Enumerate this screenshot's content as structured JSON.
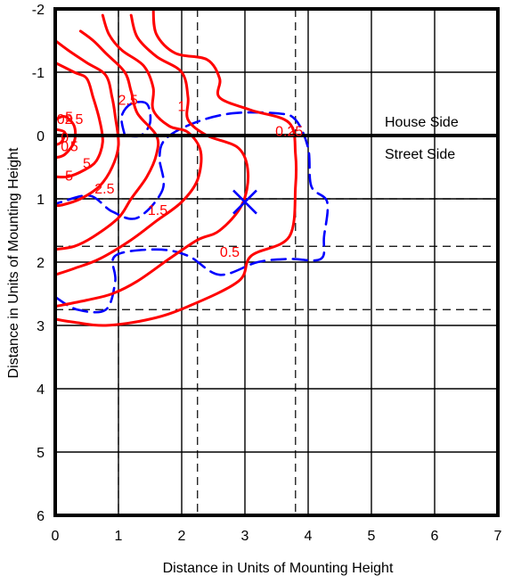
{
  "chart_data": {
    "type": "contour",
    "xlabel": "Distance in Units of Mounting Height",
    "ylabel": "Distance in Units of Mounting Height",
    "xlim": [
      0,
      7
    ],
    "ylim": [
      -2,
      6
    ],
    "y_inverted": true,
    "x_ticks": [
      "0",
      "1",
      "2",
      "3",
      "4",
      "5",
      "6",
      "7"
    ],
    "y_ticks": [
      "-2",
      "-1",
      "0",
      "1",
      "2",
      "3",
      "4",
      "5",
      "6"
    ],
    "y_tick_values": [
      -2,
      -1,
      0,
      1,
      2,
      3,
      4,
      5,
      6
    ],
    "grid": true,
    "zone_labels": {
      "upper": "House Side",
      "lower": "Street Side"
    },
    "colors": {
      "contour": "#ff0000",
      "distribution": "#0000ff",
      "axes": "#000000"
    },
    "dashed_reference_lines": {
      "x": [
        1.0,
        2.25,
        3.8
      ],
      "y": [
        1.0,
        1.75,
        2.75
      ]
    },
    "max_candela_marker": {
      "x": 3.0,
      "y": 1.05
    },
    "contours": [
      {
        "level_label": "0.25",
        "points": [
          [
            1.55,
            -2.0
          ],
          [
            1.6,
            -1.6
          ],
          [
            1.9,
            -1.3
          ],
          [
            2.4,
            -1.2
          ],
          [
            2.6,
            -0.9
          ],
          [
            2.6,
            -0.6
          ],
          [
            3.1,
            -0.4
          ],
          [
            3.7,
            -0.2
          ],
          [
            3.8,
            0.3
          ],
          [
            3.8,
            0.8
          ],
          [
            3.7,
            1.6
          ],
          [
            3.1,
            1.9
          ],
          [
            2.9,
            2.3
          ],
          [
            2.1,
            2.7
          ],
          [
            1.5,
            2.9
          ],
          [
            0.8,
            3.0
          ],
          [
            0.3,
            2.95
          ],
          [
            0.0,
            2.9
          ]
        ]
      },
      {
        "level_label": "0.5",
        "points": [
          [
            1.2,
            -1.9
          ],
          [
            1.3,
            -1.55
          ],
          [
            1.6,
            -1.25
          ],
          [
            2.0,
            -1.0
          ],
          [
            2.1,
            -0.6
          ],
          [
            2.1,
            -0.25
          ],
          [
            2.4,
            0.0
          ],
          [
            2.9,
            0.2
          ],
          [
            3.05,
            0.6
          ],
          [
            2.95,
            1.1
          ],
          [
            2.6,
            1.5
          ],
          [
            2.25,
            1.65
          ],
          [
            1.8,
            1.95
          ],
          [
            1.3,
            2.3
          ],
          [
            0.9,
            2.5
          ],
          [
            0.5,
            2.6
          ],
          [
            0.0,
            2.7
          ]
        ]
      },
      {
        "level_label": "1",
        "points": [
          [
            0.75,
            -1.9
          ],
          [
            0.85,
            -1.6
          ],
          [
            1.05,
            -1.35
          ],
          [
            1.4,
            -1.1
          ],
          [
            1.55,
            -0.75
          ],
          [
            1.55,
            -0.4
          ],
          [
            1.8,
            -0.15
          ],
          [
            2.1,
            -0.05
          ],
          [
            2.3,
            0.25
          ],
          [
            2.25,
            0.7
          ],
          [
            2.0,
            1.05
          ],
          [
            1.6,
            1.35
          ],
          [
            1.2,
            1.65
          ],
          [
            0.7,
            1.95
          ],
          [
            0.3,
            2.1
          ],
          [
            0.0,
            2.2
          ]
        ]
      },
      {
        "level_label": "1.5",
        "points": [
          [
            0.4,
            -1.65
          ],
          [
            0.6,
            -1.5
          ],
          [
            0.8,
            -1.3
          ],
          [
            1.1,
            -1.0
          ],
          [
            1.2,
            -0.7
          ],
          [
            1.3,
            -0.35
          ],
          [
            1.6,
            0.0
          ],
          [
            1.6,
            0.3
          ],
          [
            1.45,
            0.65
          ],
          [
            1.2,
            1.0
          ],
          [
            1.0,
            1.3
          ],
          [
            0.6,
            1.6
          ],
          [
            0.3,
            1.75
          ],
          [
            0.0,
            1.8
          ]
        ]
      },
      {
        "level_label": "2.5",
        "points": [
          [
            0.0,
            -1.5
          ],
          [
            0.2,
            -1.35
          ],
          [
            0.5,
            -1.15
          ],
          [
            0.8,
            -0.95
          ],
          [
            0.9,
            -0.6
          ],
          [
            0.95,
            -0.3
          ],
          [
            1.0,
            0.15
          ],
          [
            0.9,
            0.5
          ],
          [
            0.7,
            0.8
          ],
          [
            0.4,
            1.0
          ],
          [
            0.1,
            1.1
          ],
          [
            0.0,
            1.1
          ]
        ]
      },
      {
        "level_label": "5",
        "points": [
          [
            0.0,
            -1.15
          ],
          [
            0.3,
            -1.0
          ],
          [
            0.5,
            -0.9
          ],
          [
            0.6,
            -0.6
          ],
          [
            0.7,
            -0.25
          ],
          [
            0.75,
            0.1
          ],
          [
            0.65,
            0.4
          ],
          [
            0.45,
            0.55
          ],
          [
            0.2,
            0.65
          ],
          [
            0.0,
            0.65
          ]
        ]
      },
      {
        "level_label": "",
        "points": [
          [
            0.0,
            -0.25
          ],
          [
            0.15,
            -0.3
          ],
          [
            0.3,
            -0.15
          ],
          [
            0.3,
            0.1
          ],
          [
            0.15,
            0.3
          ],
          [
            0.0,
            0.35
          ]
        ]
      },
      {
        "level_label": "",
        "points": [
          [
            0.0,
            -0.1
          ],
          [
            0.15,
            -0.05
          ],
          [
            0.1,
            0.1
          ],
          [
            0.0,
            0.15
          ]
        ]
      }
    ],
    "contour_labels": [
      {
        "text": "5",
        "x": 0.22,
        "y": -0.3
      },
      {
        "text": "2.5",
        "x": 1.15,
        "y": -0.57
      },
      {
        "text": "1",
        "x": 2.0,
        "y": -0.47
      },
      {
        "text": "0.25",
        "x": 3.7,
        "y": -0.08
      },
      {
        "text": "5",
        "x": 0.5,
        "y": 0.43
      },
      {
        "text": "5",
        "x": 0.22,
        "y": 0.63
      },
      {
        "text": "2.5",
        "x": 0.78,
        "y": 0.83
      },
      {
        "text": "1.5",
        "x": 1.62,
        "y": 1.17
      },
      {
        "text": "0.5",
        "x": 2.76,
        "y": 1.83
      },
      {
        "text": "02",
        "x": 0.15,
        "y": -0.27
      },
      {
        "text": "5",
        "x": 0.38,
        "y": -0.27
      },
      {
        "text": "0",
        "x": 0.15,
        "y": 0.02
      },
      {
        "text": "0",
        "x": 0.15,
        "y": 0.16
      },
      {
        "text": "5",
        "x": 0.3,
        "y": 0.16
      }
    ],
    "distribution_curve": {
      "points": [
        [
          0.0,
          2.55
        ],
        [
          0.35,
          2.75
        ],
        [
          0.8,
          2.75
        ],
        [
          0.95,
          2.3
        ],
        [
          0.95,
          1.9
        ],
        [
          1.6,
          1.8
        ],
        [
          2.1,
          1.9
        ],
        [
          2.6,
          2.2
        ],
        [
          3.2,
          2.0
        ],
        [
          3.7,
          1.95
        ],
        [
          4.2,
          1.95
        ],
        [
          4.25,
          1.6
        ],
        [
          4.3,
          1.05
        ],
        [
          4.05,
          0.8
        ],
        [
          4.0,
          0.2
        ],
        [
          3.8,
          -0.25
        ],
        [
          3.5,
          -0.35
        ],
        [
          2.8,
          -0.35
        ],
        [
          2.2,
          -0.2
        ],
        [
          1.75,
          0.05
        ],
        [
          1.65,
          0.35
        ],
        [
          1.7,
          0.85
        ],
        [
          1.3,
          1.3
        ],
        [
          0.9,
          1.2
        ],
        [
          0.55,
          0.95
        ],
        [
          0.1,
          1.05
        ],
        [
          0.0,
          1.1
        ],
        [
          0.0,
          1.2
        ]
      ],
      "arc_points": [
        [
          1.1,
          0.0
        ],
        [
          1.05,
          -0.3
        ],
        [
          1.2,
          -0.5
        ],
        [
          1.45,
          -0.5
        ],
        [
          1.5,
          -0.2
        ],
        [
          1.35,
          0.0
        ],
        [
          1.1,
          0.0
        ]
      ]
    }
  }
}
